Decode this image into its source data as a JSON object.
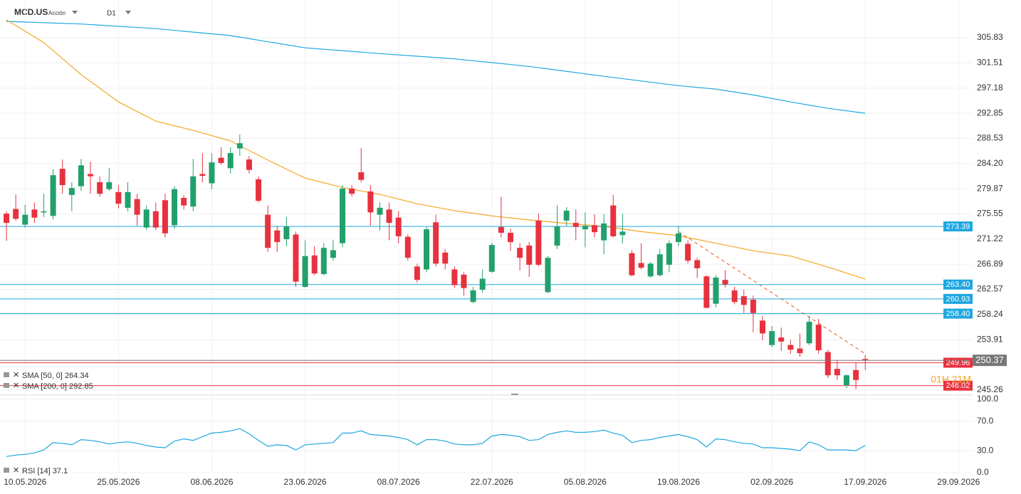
{
  "header": {
    "symbol": "MCD.US",
    "kind": "Acción",
    "timeframe": "D1"
  },
  "chart_data": {
    "type": "candlestick",
    "up_color": "#22a06b",
    "down_color": "#e8313f",
    "xlim": [
      -0.69,
      103.5
    ],
    "xticks": [
      {
        "value": 2,
        "label": "10.05.2026"
      },
      {
        "value": 12,
        "label": "25.05.2026"
      },
      {
        "value": 22,
        "label": "08.06.2026"
      },
      {
        "value": 32,
        "label": "23.06.2026"
      },
      {
        "value": 42,
        "label": "08.07.2026"
      },
      {
        "value": 52,
        "label": "22.07.2026"
      },
      {
        "value": 62,
        "label": "05.08.2026"
      },
      {
        "value": 72,
        "label": "19.08.2026"
      },
      {
        "value": 82,
        "label": "02.09.2026"
      },
      {
        "value": 92,
        "label": "17.09.2026"
      },
      {
        "value": 102,
        "label": "29.09.2026"
      }
    ],
    "ylim": [
      244.4,
      312.32
    ],
    "yticks": [
      305.83,
      301.51,
      297.18,
      292.85,
      288.53,
      {
        "value": 284.2,
        "label": "284.20"
      },
      279.87,
      275.55,
      271.22,
      266.89,
      262.57,
      258.24,
      253.91,
      245.26
    ],
    "grid": true,
    "open": [
      275.6,
      276.4,
      273.7,
      276.3,
      275.8,
      275.2,
      283.3,
      278.8,
      280.3,
      282.4,
      281.0,
      279.8,
      279.3,
      276.6,
      278.1,
      273.2,
      276.0,
      277.9,
      273.6,
      278.3,
      276.8,
      282.4,
      280.8,
      285.2,
      283.4,
      286.8,
      284.9,
      281.5,
      275.4,
      272.7,
      271.2,
      272.0,
      263.0,
      268.4,
      265.2,
      268.0,
      270.5,
      279.9,
      282.7,
      279.4,
      275.4,
      276.3,
      274.9,
      271.6,
      266.5,
      266.0,
      274.1,
      268.9,
      266.0,
      265.1,
      260.4,
      262.5,
      265.6,
      273.3,
      272.3,
      269.7,
      270.1,
      274.4,
      262.1,
      270.1,
      274.4,
      274.0,
      272.9,
      273.6,
      271.0,
      277.0,
      271.9,
      268.8,
      267.1,
      264.8,
      265.0,
      266.8,
      270.7,
      270.4,
      267.6,
      264.8,
      260.1,
      264.2,
      262.4,
      261.4,
      260.8,
      257.2,
      253.0,
      254.3,
      253.0,
      252.4,
      253.3,
      256.5,
      251.8,
      248.9,
      246.1,
      248.7,
      250.6
    ],
    "high": [
      276.0,
      278.9,
      277.1,
      277.5,
      279.0,
      283.2,
      284.9,
      281.0,
      285.0,
      284.5,
      282.0,
      283.5,
      280.5,
      281.0,
      279.0,
      277.0,
      277.5,
      279.0,
      280.3,
      278.8,
      285.0,
      286.0,
      286.0,
      287.0,
      287.0,
      289.2,
      285.5,
      282.0,
      277.0,
      273.5,
      275.0,
      272.5,
      271.0,
      270.0,
      270.5,
      271.0,
      280.5,
      280.5,
      286.9,
      280.5,
      277.5,
      277.5,
      276.0,
      272.0,
      267.0,
      273.3,
      275.4,
      269.5,
      266.5,
      265.5,
      263.0,
      266.0,
      270.6,
      278.5,
      273.0,
      270.5,
      270.7,
      275.6,
      268.3,
      277.0,
      276.7,
      276.3,
      275.8,
      275.5,
      275.5,
      278.8,
      275.6,
      269.3,
      270.5,
      267.3,
      269.5,
      271.0,
      273.5,
      271.0,
      268.0,
      265.0,
      265.0,
      265.9,
      263.0,
      262.5,
      261.5,
      258.0,
      256.3,
      256.0,
      253.9,
      255.0,
      258.0,
      257.5,
      252.2,
      250.3,
      248.0,
      250.0,
      251.3
    ],
    "low": [
      270.9,
      274.4,
      273.2,
      274.0,
      275.0,
      274.6,
      279.0,
      276.0,
      279.5,
      279.0,
      278.5,
      279.5,
      276.5,
      276.0,
      273.5,
      272.8,
      272.8,
      271.5,
      273.0,
      276.3,
      276.0,
      281.0,
      279.8,
      284.0,
      282.5,
      285.5,
      282.5,
      277.5,
      269.0,
      269.0,
      270.0,
      263.0,
      262.9,
      265.0,
      265.0,
      267.5,
      269.8,
      278.5,
      281.0,
      273.5,
      272.7,
      271.0,
      270.5,
      267.5,
      263.7,
      265.5,
      266.5,
      266.0,
      262.8,
      261.5,
      260.2,
      262.0,
      265.4,
      271.5,
      269.2,
      265.8,
      264.7,
      266.5,
      261.9,
      269.5,
      273.5,
      271.0,
      269.8,
      271.5,
      268.6,
      271.5,
      270.5,
      264.8,
      266.0,
      264.6,
      264.8,
      265.5,
      270.0,
      267.0,
      264.5,
      259.3,
      259.5,
      262.9,
      260.0,
      258.5,
      255.2,
      253.8,
      252.6,
      252.0,
      251.5,
      251.0,
      253.0,
      251.5,
      247.3,
      247.0,
      245.6,
      245.4,
      248.7
    ],
    "close": [
      274.0,
      274.7,
      275.4,
      274.9,
      276.0,
      282.2,
      280.5,
      280.0,
      283.9,
      282.0,
      279.0,
      281.0,
      277.3,
      279.3,
      275.4,
      276.3,
      273.2,
      272.2,
      279.8,
      277.0,
      282.0,
      282.1,
      284.4,
      284.3,
      286.0,
      287.7,
      283.1,
      277.8,
      269.7,
      270.7,
      273.4,
      263.9,
      268.3,
      265.3,
      269.7,
      269.3,
      279.9,
      279.0,
      281.4,
      275.8,
      276.6,
      274.0,
      271.7,
      268.0,
      264.2,
      272.9,
      267.0,
      267.0,
      263.3,
      262.8,
      262.4,
      264.4,
      270.2,
      272.3,
      270.7,
      268.0,
      266.8,
      266.8,
      268.0,
      273.4,
      276.1,
      273.3,
      273.5,
      272.4,
      273.9,
      271.7,
      272.5,
      265.0,
      266.3,
      267.0,
      268.6,
      270.5,
      272.2,
      267.5,
      266.2,
      259.4,
      264.6,
      263.4,
      260.4,
      259.9,
      258.5,
      255.0,
      255.4,
      253.6,
      252.2,
      251.6,
      257.0,
      252.1,
      247.8,
      247.8,
      247.8,
      247.0,
      250.37
    ],
    "sma50": {
      "name": "SMA [50, 0]",
      "color": "#f5a623",
      "x": [
        0,
        4,
        8,
        12,
        16,
        20,
        24,
        28,
        32,
        36,
        40,
        44,
        48,
        52,
        56,
        60,
        64,
        68,
        72,
        76,
        80,
        84,
        88,
        92
      ],
      "values": [
        308.9,
        305.0,
        299.5,
        294.8,
        291.5,
        289.9,
        288.1,
        284.8,
        281.7,
        280.1,
        278.9,
        277.3,
        276.1,
        275.2,
        274.5,
        273.9,
        273.4,
        272.5,
        271.8,
        270.5,
        269.2,
        268.3,
        266.4,
        264.34
      ]
    },
    "sma200": {
      "name": "SMA [200, 0]",
      "color": "#1ea7e0",
      "x": [
        0,
        8,
        16,
        24,
        32,
        40,
        48,
        56,
        64,
        72,
        76,
        80,
        84,
        88,
        92
      ],
      "values": [
        308.65,
        308.2,
        307.4,
        306.2,
        304.1,
        303.1,
        302.2,
        300.9,
        299.2,
        297.6,
        297.0,
        296.0,
        294.8,
        293.7,
        292.85
      ]
    },
    "trendline": {
      "color": "#e8764a",
      "x": [
        72,
        92
      ],
      "values": [
        272.5,
        251.5
      ]
    },
    "levels": [
      {
        "value": 273.39,
        "color": "#1ea7e0"
      },
      {
        "value": 263.4,
        "label": "263.40",
        "color": "#1ea7e0"
      },
      {
        "value": 260.93,
        "color": "#1ea7e0"
      },
      {
        "value": 258.4,
        "label": "258.40",
        "color": "#1ea7e0"
      },
      {
        "value": 249.96,
        "color": "#e8313f"
      },
      {
        "value": 246.02,
        "color": "#e8313f"
      }
    ],
    "last_price": {
      "value": 250.37,
      "color": "#777777"
    },
    "countdown": "01H 21M",
    "rsi": {
      "name": "RSI [14]",
      "color": "#1ea7e0",
      "ylim": [
        0,
        100
      ],
      "yticks": [
        {
          "value": 100,
          "label": "100.0"
        },
        {
          "value": 70,
          "label": "70.0"
        },
        {
          "value": 30,
          "label": "30.0"
        },
        {
          "value": 0,
          "label": "0.0"
        }
      ],
      "values": [
        22,
        24,
        25,
        27,
        31,
        41,
        40,
        38,
        45,
        44,
        42,
        39,
        41,
        42,
        40,
        37,
        35,
        34,
        43,
        46,
        44,
        49,
        54,
        55,
        57,
        60,
        53,
        44,
        36,
        38,
        37,
        31,
        38,
        39,
        40,
        41,
        54,
        54,
        57,
        52,
        51,
        50,
        48,
        45,
        38,
        45,
        45,
        43,
        39,
        38,
        38,
        40,
        50,
        52,
        51,
        49,
        44,
        45,
        52,
        55,
        57,
        55,
        55,
        56,
        58,
        54,
        51,
        41,
        44,
        45,
        48,
        50,
        52,
        49,
        45,
        35,
        46,
        45,
        42,
        40,
        39,
        34,
        34,
        33,
        32,
        30,
        42,
        38,
        31,
        31,
        31,
        30,
        37.1
      ]
    }
  }
}
